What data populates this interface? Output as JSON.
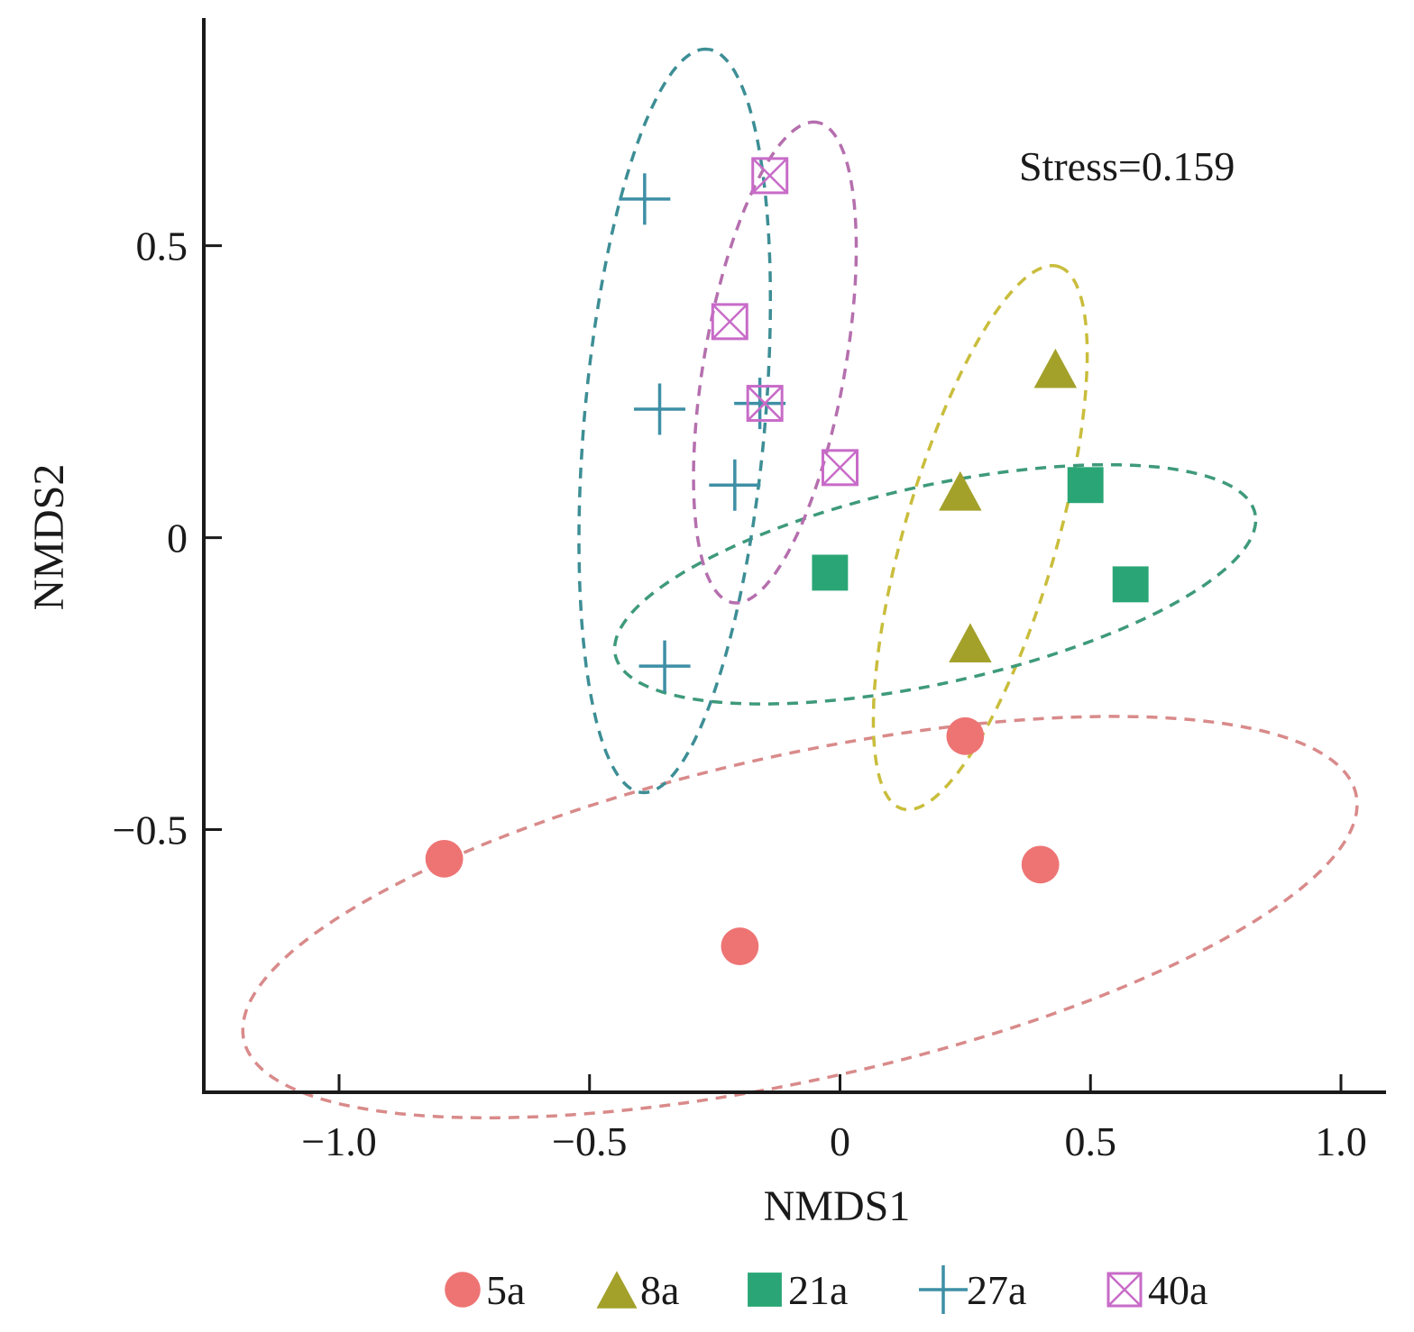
{
  "chart_data": {
    "type": "scatter",
    "title": "",
    "xlabel": "NMDS1",
    "ylabel": "NMDS2",
    "xlim": [
      -1.27,
      1.09
    ],
    "ylim": [
      -0.95,
      0.89
    ],
    "x_ticks": [
      -1.0,
      -0.5,
      0,
      0.5,
      1.0
    ],
    "x_tick_labels": [
      "−1.0",
      "−0.5",
      "0",
      "0.5",
      "1.0"
    ],
    "y_ticks": [
      0.5,
      0,
      -0.5
    ],
    "y_tick_labels": [
      "0.5",
      "0",
      "−0.5"
    ],
    "annotation": "Stress=0.159",
    "grid": false,
    "legend_position": "bottom",
    "series": [
      {
        "name": "5a",
        "marker": "circle",
        "color": "#ee7474",
        "ellipse_color": "#d98a8a",
        "points": [
          [
            -0.79,
            -0.55
          ],
          [
            -0.2,
            -0.7
          ],
          [
            0.25,
            -0.34
          ],
          [
            0.4,
            -0.56
          ]
        ],
        "ellipse": {
          "cx": -0.08,
          "cy": -0.65,
          "rx": 1.13,
          "ry": 0.28,
          "angle_deg": 10.5
        }
      },
      {
        "name": "8a",
        "marker": "triangle",
        "color": "#a3a12a",
        "ellipse_color": "#c9bd3c",
        "points": [
          [
            0.43,
            0.29
          ],
          [
            0.24,
            0.08
          ],
          [
            0.26,
            -0.18
          ]
        ],
        "ellipse": {
          "cx": 0.28,
          "cy": 0.0,
          "rx": 0.49,
          "ry": 0.15,
          "angle_deg": 71
        }
      },
      {
        "name": "21a",
        "marker": "square",
        "color": "#2aa676",
        "ellipse_color": "#3e9a7a",
        "points": [
          [
            0.49,
            0.09
          ],
          [
            -0.02,
            -0.06
          ],
          [
            0.58,
            -0.08
          ]
        ],
        "ellipse": {
          "cx": 0.19,
          "cy": -0.08,
          "rx": 0.65,
          "ry": 0.17,
          "angle_deg": 10.5
        }
      },
      {
        "name": "27a",
        "marker": "plus",
        "color": "#3e8fa6",
        "ellipse_color": "#3d8e95",
        "points": [
          [
            -0.39,
            0.58
          ],
          [
            -0.36,
            0.22
          ],
          [
            -0.21,
            0.09
          ],
          [
            -0.35,
            -0.22
          ],
          [
            -0.16,
            0.23
          ]
        ],
        "ellipse": {
          "cx": -0.33,
          "cy": 0.2,
          "rx": 0.64,
          "ry": 0.18,
          "angle_deg": 84
        }
      },
      {
        "name": "40a",
        "marker": "boxed-x",
        "color": "#c86bc8",
        "ellipse_color": "#b56fae",
        "points": [
          [
            -0.14,
            0.62
          ],
          [
            -0.22,
            0.37
          ],
          [
            -0.15,
            0.23
          ],
          [
            0.0,
            0.12
          ]
        ],
        "ellipse": {
          "cx": -0.13,
          "cy": 0.3,
          "rx": 0.42,
          "ry": 0.14,
          "angle_deg": 78
        }
      }
    ]
  }
}
